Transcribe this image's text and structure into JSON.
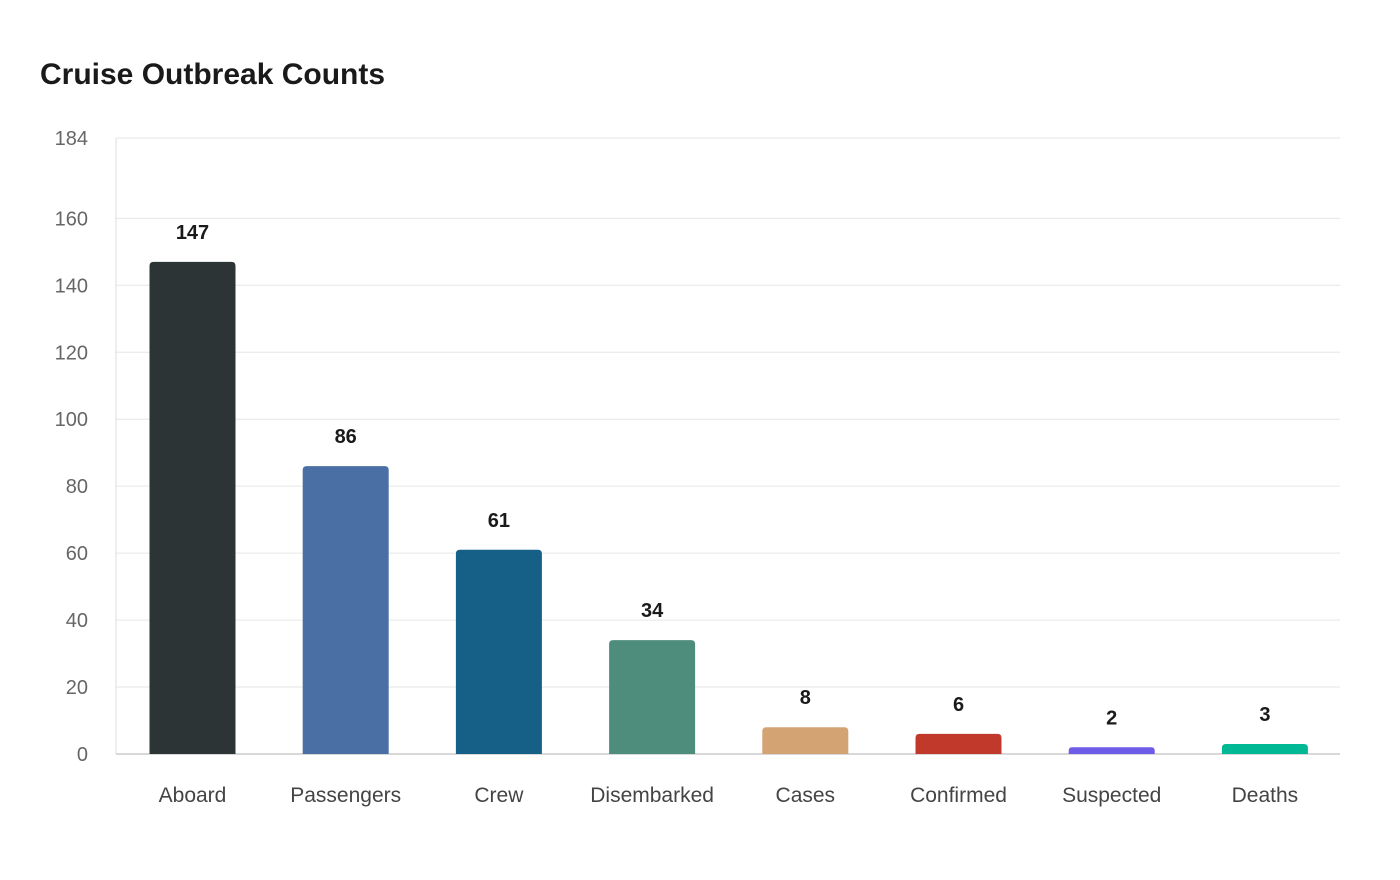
{
  "chart_data": {
    "type": "bar",
    "title": "Cruise Outbreak Counts",
    "xlabel": "",
    "ylabel": "",
    "categories": [
      "Aboard",
      "Passengers",
      "Crew",
      "Disembarked",
      "Cases",
      "Confirmed",
      "Suspected",
      "Deaths"
    ],
    "values": [
      147,
      86,
      61,
      34,
      8,
      6,
      2,
      3
    ],
    "colors": [
      "#2d3436",
      "#4a6fa5",
      "#166088",
      "#4e8d7c",
      "#d4a373",
      "#c0392b",
      "#6c5ce7",
      "#00b894"
    ],
    "ylim": [
      0,
      184
    ],
    "yticks": [
      0,
      20,
      40,
      60,
      80,
      100,
      120,
      140,
      160,
      184
    ],
    "grid": true,
    "legend": "none"
  }
}
